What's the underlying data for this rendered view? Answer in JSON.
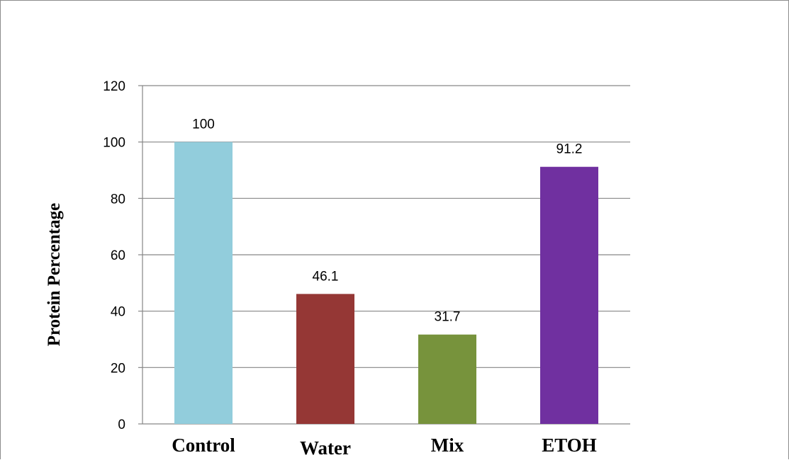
{
  "chart_data": {
    "type": "bar",
    "categories": [
      "Control",
      "Water",
      "Mix",
      "ETOH"
    ],
    "values": [
      100,
      46.1,
      31.7,
      91.2
    ],
    "data_labels": [
      "100",
      "46.1",
      "31.7",
      "91.2"
    ],
    "colors": [
      "#92cddc",
      "#953735",
      "#77933c",
      "#7030a0"
    ],
    "title": "",
    "xlabel": "",
    "ylabel": "Protein Percentage",
    "ylim": [
      0,
      120
    ],
    "yticks": [
      0,
      20,
      40,
      60,
      80,
      100,
      120
    ],
    "grid": "horizontal",
    "legend": "none"
  }
}
